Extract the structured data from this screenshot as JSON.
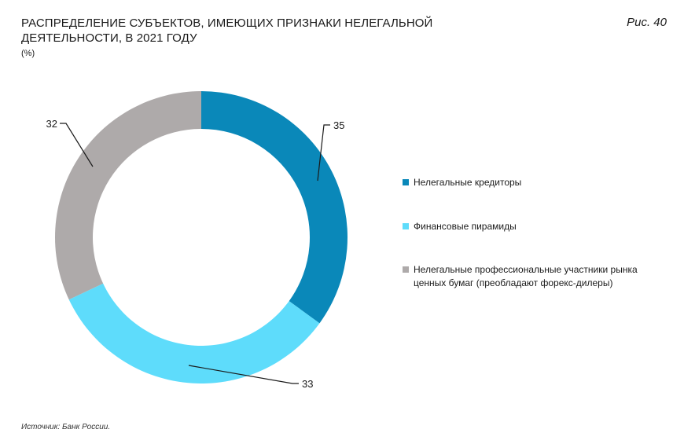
{
  "header": {
    "title_line1": "РАСПРЕДЕЛЕНИЕ СУБЪЕКТОВ, ИМЕЮЩИХ ПРИЗНАКИ НЕЛЕГАЛЬНОЙ",
    "title_line2": "ДЕЯТЕЛЬНОСТИ, В 2021 ГОДУ",
    "unit": "(%)",
    "figure_label": "Рис. 40"
  },
  "footer": {
    "source": "Источник: Банк России."
  },
  "chart_data": {
    "type": "pie",
    "donut": true,
    "title": "РАСПРЕДЕЛЕНИЕ СУБЪЕКТОВ, ИМЕЮЩИХ ПРИЗНАКИ НЕЛЕГАЛЬНОЙ ДЕЯТЕЛЬНОСТИ, В 2021 ГОДУ",
    "unit": "%",
    "legend_position": "right",
    "slices": [
      {
        "label": "Нелегальные кредиторы",
        "value": 35,
        "value_label": "35",
        "color": "#0a88b9"
      },
      {
        "label": "Финансовые пирамиды",
        "value": 33,
        "value_label": "33",
        "color": "#5edcfb"
      },
      {
        "label": "Нелегальные профессиональные участники рынка ценных бумаг (преобладают форекс-дилеры)",
        "value": 32,
        "value_label": "32",
        "color": "#aeaaaa"
      }
    ]
  }
}
